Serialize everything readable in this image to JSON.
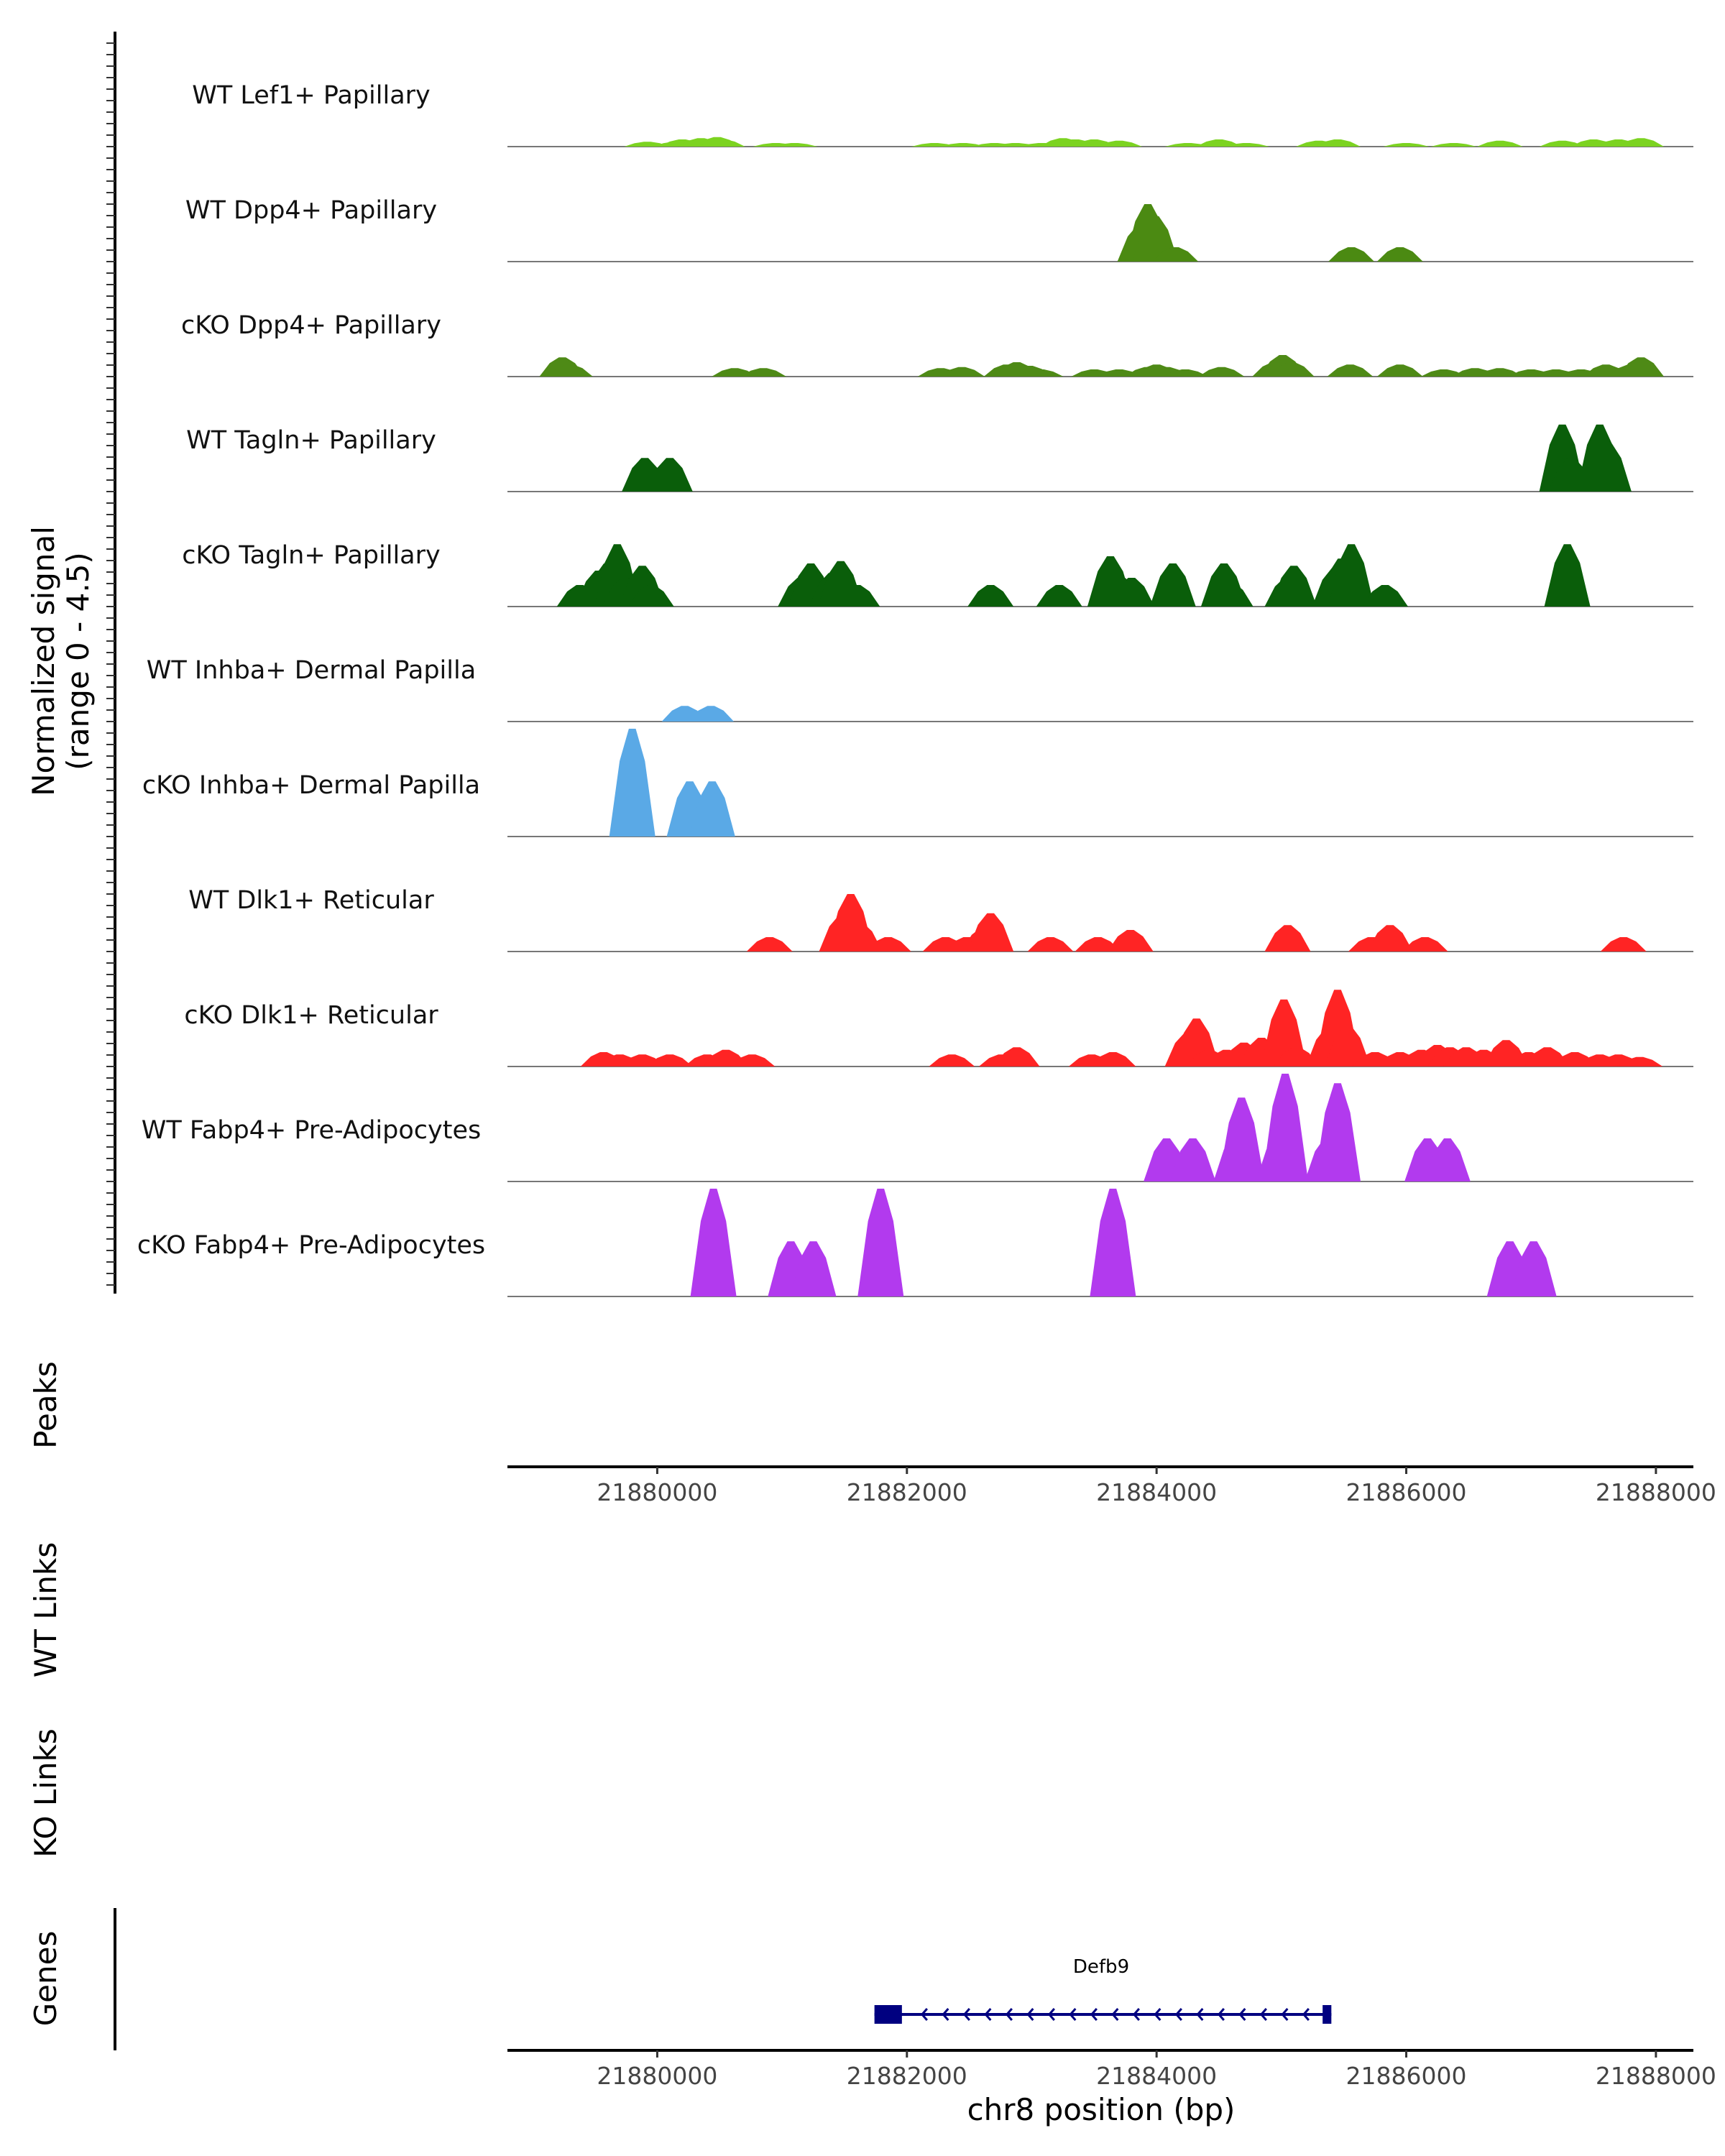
{
  "chart_data": {
    "type": "area",
    "title": "",
    "chromosome": "chr8",
    "xlabel": "chr8 position (bp)",
    "xlim": [
      21878800,
      21888300
    ],
    "x_ticks": [
      21880000,
      21882000,
      21884000,
      21886000,
      21888000
    ],
    "x_tick_labels": [
      "21880000",
      "21882000",
      "21884000",
      "21886000",
      "21888000"
    ],
    "ylabel_line1": "Normalized signal",
    "ylabel_line2": "(range 0 - 4.5)",
    "ylim": [
      0,
      4.5
    ],
    "panels": {
      "peaks": "Peaks",
      "wt_links": "WT Links",
      "ko_links": "KO Links",
      "genes": "Genes"
    },
    "tracks": [
      {
        "name": "WT Lef1+ Papillary",
        "color": "#7cd321",
        "peaks": [
          [
            21879920,
            0.2
          ],
          [
            21880150,
            0.2
          ],
          [
            21880200,
            0.3
          ],
          [
            21880350,
            0.35
          ],
          [
            21880480,
            0.4
          ],
          [
            21880520,
            0.3
          ],
          [
            21880950,
            0.15
          ],
          [
            21881100,
            0.15
          ],
          [
            21882220,
            0.15
          ],
          [
            21882450,
            0.15
          ],
          [
            21882700,
            0.15
          ],
          [
            21882870,
            0.15
          ],
          [
            21883080,
            0.15
          ],
          [
            21883250,
            0.35
          ],
          [
            21883350,
            0.3
          ],
          [
            21883500,
            0.3
          ],
          [
            21883700,
            0.25
          ],
          [
            21884250,
            0.15
          ],
          [
            21884500,
            0.3
          ],
          [
            21884720,
            0.15
          ],
          [
            21885300,
            0.25
          ],
          [
            21885450,
            0.3
          ],
          [
            21886000,
            0.15
          ],
          [
            21886380,
            0.15
          ],
          [
            21886750,
            0.25
          ],
          [
            21887250,
            0.25
          ],
          [
            21887500,
            0.3
          ],
          [
            21887700,
            0.3
          ],
          [
            21887880,
            0.35
          ]
        ]
      },
      {
        "name": "WT Dpp4+ Papillary",
        "color": "#4b8a12",
        "peaks": [
          [
            21883870,
            1.5
          ],
          [
            21883930,
            2.4
          ],
          [
            21883990,
            1.9
          ],
          [
            21884150,
            0.6
          ],
          [
            21885560,
            0.6
          ],
          [
            21885950,
            0.6
          ]
        ]
      },
      {
        "name": "cKO Dpp4+ Papillary",
        "color": "#4e8a16",
        "peaks": [
          [
            21879240,
            0.8
          ],
          [
            21879300,
            0.5
          ],
          [
            21880620,
            0.35
          ],
          [
            21880850,
            0.35
          ],
          [
            21882270,
            0.35
          ],
          [
            21882440,
            0.4
          ],
          [
            21882800,
            0.5
          ],
          [
            21882880,
            0.6
          ],
          [
            21882980,
            0.45
          ],
          [
            21883070,
            0.3
          ],
          [
            21883500,
            0.3
          ],
          [
            21883700,
            0.3
          ],
          [
            21883930,
            0.4
          ],
          [
            21884000,
            0.5
          ],
          [
            21884080,
            0.4
          ],
          [
            21884230,
            0.3
          ],
          [
            21884520,
            0.4
          ],
          [
            21884950,
            0.6
          ],
          [
            21885010,
            0.9
          ],
          [
            21885080,
            0.6
          ],
          [
            21885550,
            0.5
          ],
          [
            21885950,
            0.5
          ],
          [
            21886300,
            0.3
          ],
          [
            21886550,
            0.35
          ],
          [
            21886750,
            0.35
          ],
          [
            21887000,
            0.3
          ],
          [
            21887200,
            0.3
          ],
          [
            21887400,
            0.3
          ],
          [
            21887600,
            0.5
          ],
          [
            21887800,
            0.5
          ],
          [
            21887880,
            0.8
          ]
        ]
      },
      {
        "name": "WT Tagln+ Papillary",
        "color": "#0a5e0a",
        "peaks": [
          [
            21879900,
            1.4
          ],
          [
            21880100,
            1.4
          ],
          [
            21887250,
            2.8
          ],
          [
            21887320,
            1.4
          ],
          [
            21887550,
            2.8
          ],
          [
            21887620,
            2.0
          ]
        ]
      },
      {
        "name": "cKO Tagln+ Papillary",
        "color": "#0a5e0a",
        "peaks": [
          [
            21879380,
            0.9
          ],
          [
            21879530,
            1.5
          ],
          [
            21879600,
            1.8
          ],
          [
            21879680,
            2.6
          ],
          [
            21879740,
            1.2
          ],
          [
            21879880,
            1.7
          ],
          [
            21879950,
            0.9
          ],
          [
            21881150,
            1.2
          ],
          [
            21881230,
            1.8
          ],
          [
            21881400,
            1.4
          ],
          [
            21881470,
            1.9
          ],
          [
            21881600,
            0.9
          ],
          [
            21882670,
            0.9
          ],
          [
            21883220,
            0.9
          ],
          [
            21883630,
            2.1
          ],
          [
            21883720,
            1.2
          ],
          [
            21883800,
            1.2
          ],
          [
            21884130,
            1.8
          ],
          [
            21884540,
            1.8
          ],
          [
            21884590,
            1.0
          ],
          [
            21885050,
            1.2
          ],
          [
            21885100,
            1.7
          ],
          [
            21885430,
            1.6
          ],
          [
            21885480,
            2.0
          ],
          [
            21885560,
            2.6
          ],
          [
            21885830,
            0.9
          ],
          [
            21887290,
            2.6
          ]
        ]
      },
      {
        "name": "WT Inhba+ Dermal Papilla",
        "color": "#5aa9e6",
        "peaks": [
          [
            21880220,
            0.65
          ],
          [
            21880430,
            0.65
          ]
        ]
      },
      {
        "name": "cKO Inhba+ Dermal Papilla",
        "color": "#5aa9e6",
        "peaks": [
          [
            21879800,
            4.5
          ],
          [
            21880260,
            2.3
          ],
          [
            21880440,
            2.3
          ]
        ]
      },
      {
        "name": "WT Dlk1+ Reticular",
        "color": "#ff2424",
        "peaks": [
          [
            21880900,
            0.6
          ],
          [
            21881480,
            1.5
          ],
          [
            21881550,
            2.4
          ],
          [
            21881620,
            1.2
          ],
          [
            21881850,
            0.6
          ],
          [
            21882310,
            0.6
          ],
          [
            21882480,
            0.6
          ],
          [
            21882620,
            1.0
          ],
          [
            21882670,
            1.6
          ],
          [
            21883150,
            0.6
          ],
          [
            21883530,
            0.6
          ],
          [
            21883790,
            0.9
          ],
          [
            21885050,
            1.1
          ],
          [
            21885720,
            0.6
          ],
          [
            21885870,
            1.1
          ],
          [
            21886150,
            0.6
          ],
          [
            21887740,
            0.6
          ]
        ]
      },
      {
        "name": "cKO Dlk1+ Reticular",
        "color": "#ff2424",
        "peaks": [
          [
            21879570,
            0.6
          ],
          [
            21879700,
            0.5
          ],
          [
            21879880,
            0.5
          ],
          [
            21880100,
            0.5
          ],
          [
            21880400,
            0.5
          ],
          [
            21880550,
            0.7
          ],
          [
            21880760,
            0.5
          ],
          [
            21882360,
            0.5
          ],
          [
            21882760,
            0.5
          ],
          [
            21882880,
            0.8
          ],
          [
            21883480,
            0.5
          ],
          [
            21883650,
            0.6
          ],
          [
            21884250,
            1.4
          ],
          [
            21884320,
            2.0
          ],
          [
            21884420,
            0.7
          ],
          [
            21884560,
            0.7
          ],
          [
            21884700,
            1.0
          ],
          [
            21884840,
            1.2
          ],
          [
            21885020,
            2.8
          ],
          [
            21885120,
            0.8
          ],
          [
            21885380,
            1.6
          ],
          [
            21885450,
            3.2
          ],
          [
            21885530,
            1.7
          ],
          [
            21885750,
            0.6
          ],
          [
            21885950,
            0.6
          ],
          [
            21886120,
            0.7
          ],
          [
            21886250,
            0.9
          ],
          [
            21886350,
            0.8
          ],
          [
            21886480,
            0.8
          ],
          [
            21886620,
            0.7
          ],
          [
            21886800,
            1.1
          ],
          [
            21886980,
            0.6
          ],
          [
            21887130,
            0.8
          ],
          [
            21887350,
            0.6
          ],
          [
            21887550,
            0.5
          ],
          [
            21887700,
            0.5
          ],
          [
            21887870,
            0.4
          ]
        ]
      },
      {
        "name": "WT Fabp4+ Pre-Adipocytes",
        "color": "#b23aee",
        "peaks": [
          [
            21884080,
            1.8
          ],
          [
            21884290,
            1.8
          ],
          [
            21884640,
            1.9
          ],
          [
            21884680,
            3.5
          ],
          [
            21884980,
            1.9
          ],
          [
            21885030,
            4.5
          ],
          [
            21885370,
            1.8
          ],
          [
            21885450,
            4.1
          ],
          [
            21886170,
            1.8
          ],
          [
            21886330,
            1.8
          ]
        ]
      },
      {
        "name": "cKO Fabp4+ Pre-Adipocytes",
        "color": "#b23aee",
        "peaks": [
          [
            21880450,
            4.5
          ],
          [
            21881070,
            2.3
          ],
          [
            21881250,
            2.3
          ],
          [
            21881790,
            4.5
          ],
          [
            21883650,
            4.5
          ],
          [
            21886830,
            2.3
          ],
          [
            21887020,
            2.3
          ]
        ]
      }
    ],
    "gene": {
      "name": "Defb9",
      "start": 21881740,
      "end": 21885400,
      "strand": "-",
      "exons": [
        [
          21881740,
          21881960
        ],
        [
          21885330,
          21885400
        ]
      ],
      "color": "#000080"
    }
  }
}
